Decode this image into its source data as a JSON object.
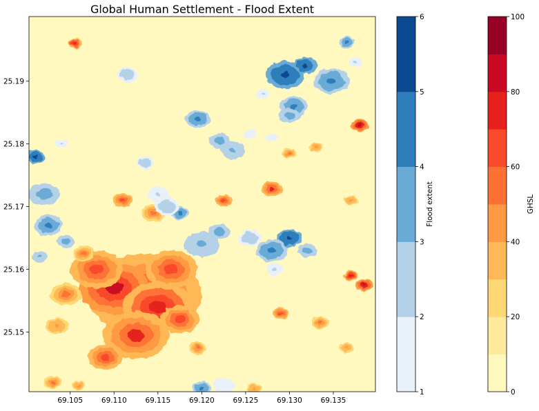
{
  "chart_data": {
    "type": "heatmap",
    "title": "Global Human Settlement - Flood Extent",
    "xlabel": "",
    "ylabel": "",
    "xlim": [
      69.1003,
      69.1398
    ],
    "ylim": [
      25.1405,
      25.2003
    ],
    "xticks": [
      "69.105",
      "69.110",
      "69.115",
      "69.120",
      "69.125",
      "69.130",
      "69.135"
    ],
    "xtick_values": [
      69.105,
      69.11,
      69.115,
      69.12,
      69.125,
      69.13,
      69.135
    ],
    "yticks": [
      "25.15",
      "25.16",
      "25.17",
      "25.18",
      "25.19"
    ],
    "ytick_values": [
      25.15,
      25.16,
      25.17,
      25.18,
      25.19
    ],
    "grid": false,
    "layers": [
      {
        "name": "GHSL",
        "colormap": "YlOrRd",
        "range": [
          0,
          100
        ],
        "hotspots": [
          {
            "x": 69.1135,
            "y": 25.156,
            "r": 0.0065,
            "v": 70
          },
          {
            "x": 69.11,
            "y": 25.157,
            "r": 0.004,
            "v": 80
          },
          {
            "x": 69.115,
            "y": 25.154,
            "r": 0.004,
            "v": 75
          },
          {
            "x": 69.1125,
            "y": 25.1495,
            "r": 0.0038,
            "v": 70
          },
          {
            "x": 69.108,
            "y": 25.16,
            "r": 0.003,
            "v": 60
          },
          {
            "x": 69.1165,
            "y": 25.16,
            "r": 0.003,
            "v": 65
          },
          {
            "x": 69.1045,
            "y": 25.156,
            "r": 0.0018,
            "v": 55
          },
          {
            "x": 69.109,
            "y": 25.146,
            "r": 0.002,
            "v": 65
          },
          {
            "x": 69.1175,
            "y": 25.152,
            "r": 0.0022,
            "v": 60
          },
          {
            "x": 69.1065,
            "y": 25.1625,
            "r": 0.0012,
            "v": 55
          },
          {
            "x": 69.1035,
            "y": 25.151,
            "r": 0.0013,
            "v": 45
          },
          {
            "x": 69.128,
            "y": 25.1728,
            "r": 0.0012,
            "v": 70
          },
          {
            "x": 69.129,
            "y": 25.153,
            "r": 0.0009,
            "v": 65
          },
          {
            "x": 69.1385,
            "y": 25.1575,
            "r": 0.001,
            "v": 85
          },
          {
            "x": 69.137,
            "y": 25.159,
            "r": 0.0008,
            "v": 75
          },
          {
            "x": 69.138,
            "y": 25.183,
            "r": 0.001,
            "v": 85
          },
          {
            "x": 69.1145,
            "y": 25.169,
            "r": 0.0014,
            "v": 55
          },
          {
            "x": 69.111,
            "y": 25.171,
            "r": 0.0011,
            "v": 60
          },
          {
            "x": 69.1225,
            "y": 25.171,
            "r": 0.001,
            "v": 60
          },
          {
            "x": 69.1055,
            "y": 25.196,
            "r": 0.0008,
            "v": 75
          },
          {
            "x": 69.1195,
            "y": 25.1475,
            "r": 0.001,
            "v": 50
          },
          {
            "x": 69.126,
            "y": 25.141,
            "r": 0.0008,
            "v": 45
          },
          {
            "x": 69.1335,
            "y": 25.1515,
            "r": 0.001,
            "v": 50
          },
          {
            "x": 69.1365,
            "y": 25.1475,
            "r": 0.0008,
            "v": 45
          },
          {
            "x": 69.103,
            "y": 25.142,
            "r": 0.001,
            "v": 50
          },
          {
            "x": 69.106,
            "y": 25.1415,
            "r": 0.0008,
            "v": 45
          },
          {
            "x": 69.137,
            "y": 25.171,
            "r": 0.0008,
            "v": 45
          },
          {
            "x": 69.13,
            "y": 25.1785,
            "r": 0.0008,
            "v": 50
          },
          {
            "x": 69.133,
            "y": 25.1795,
            "r": 0.0008,
            "v": 45
          }
        ]
      },
      {
        "name": "Flood extent",
        "colormap": "Blues",
        "range": [
          1,
          6
        ],
        "blobs": [
          {
            "x": 69.1295,
            "y": 25.191,
            "r": 0.0022,
            "v": 5.7
          },
          {
            "x": 69.1318,
            "y": 25.1925,
            "r": 0.0013,
            "v": 5.5
          },
          {
            "x": 69.1348,
            "y": 25.19,
            "r": 0.002,
            "v": 4.5
          },
          {
            "x": 69.1365,
            "y": 25.1962,
            "r": 0.0009,
            "v": 4.0
          },
          {
            "x": 69.1305,
            "y": 25.186,
            "r": 0.0016,
            "v": 4.2
          },
          {
            "x": 69.13,
            "y": 25.1845,
            "r": 0.0012,
            "v": 3.5
          },
          {
            "x": 69.1195,
            "y": 25.184,
            "r": 0.0014,
            "v": 4.5
          },
          {
            "x": 69.122,
            "y": 25.1805,
            "r": 0.0012,
            "v": 3.5
          },
          {
            "x": 69.1235,
            "y": 25.179,
            "r": 0.0014,
            "v": 3.2
          },
          {
            "x": 69.101,
            "y": 25.178,
            "r": 0.0011,
            "v": 5.5
          },
          {
            "x": 69.102,
            "y": 25.172,
            "r": 0.0018,
            "v": 3.5
          },
          {
            "x": 69.1025,
            "y": 25.167,
            "r": 0.0016,
            "v": 4.2
          },
          {
            "x": 69.1045,
            "y": 25.1645,
            "r": 0.001,
            "v": 3.8
          },
          {
            "x": 69.1175,
            "y": 25.169,
            "r": 0.0011,
            "v": 4.5
          },
          {
            "x": 69.12,
            "y": 25.164,
            "r": 0.002,
            "v": 3.2
          },
          {
            "x": 69.122,
            "y": 25.166,
            "r": 0.0012,
            "v": 3.5
          },
          {
            "x": 69.116,
            "y": 25.17,
            "r": 0.0014,
            "v": 2.5
          },
          {
            "x": 69.13,
            "y": 25.165,
            "r": 0.0014,
            "v": 5.7
          },
          {
            "x": 69.128,
            "y": 25.163,
            "r": 0.0018,
            "v": 4.4
          },
          {
            "x": 69.132,
            "y": 25.163,
            "r": 0.0011,
            "v": 3.5
          },
          {
            "x": 69.1255,
            "y": 25.165,
            "r": 0.0013,
            "v": 2.5
          },
          {
            "x": 69.1283,
            "y": 25.16,
            "r": 0.001,
            "v": 2.0
          },
          {
            "x": 69.1115,
            "y": 25.191,
            "r": 0.0012,
            "v": 2.5
          },
          {
            "x": 69.12,
            "y": 25.141,
            "r": 0.0011,
            "v": 4.0
          },
          {
            "x": 69.1225,
            "y": 25.1415,
            "r": 0.0012,
            "v": 1.8
          },
          {
            "x": 69.1135,
            "y": 25.177,
            "r": 0.001,
            "v": 2.5
          },
          {
            "x": 69.115,
            "y": 25.172,
            "r": 0.0012,
            "v": 2.0
          },
          {
            "x": 69.1015,
            "y": 25.162,
            "r": 0.0009,
            "v": 3.3
          },
          {
            "x": 69.104,
            "y": 25.18,
            "r": 0.0007,
            "v": 2.0
          },
          {
            "x": 69.1375,
            "y": 25.193,
            "r": 0.0008,
            "v": 2.0
          },
          {
            "x": 69.127,
            "y": 25.188,
            "r": 0.0008,
            "v": 2.0
          },
          {
            "x": 69.1255,
            "y": 25.1815,
            "r": 0.0007,
            "v": 1.8
          },
          {
            "x": 69.128,
            "y": 25.181,
            "r": 0.0007,
            "v": 1.8
          }
        ]
      }
    ],
    "colorbars": [
      {
        "label": "Flood extent",
        "range": [
          1,
          6
        ],
        "ticks": [
          "1",
          "2",
          "3",
          "4",
          "5",
          "6"
        ],
        "tick_values": [
          1,
          2,
          3,
          4,
          5,
          6
        ],
        "colors": [
          "#e8f0f9",
          "#b4d1e8",
          "#6aabd6",
          "#2f7ebc",
          "#0b4a90"
        ]
      },
      {
        "label": "GHSL",
        "range": [
          0,
          100
        ],
        "ticks": [
          "0",
          "20",
          "40",
          "60",
          "80",
          "100"
        ],
        "tick_values": [
          0,
          20,
          40,
          60,
          80,
          100
        ],
        "colors": [
          "#fff9bf",
          "#ffe99c",
          "#fed875",
          "#feb855",
          "#fd9a43",
          "#fd7234",
          "#f94a29",
          "#e6211e",
          "#c90823",
          "#990026"
        ]
      }
    ],
    "background_color": "#fff9bf"
  }
}
